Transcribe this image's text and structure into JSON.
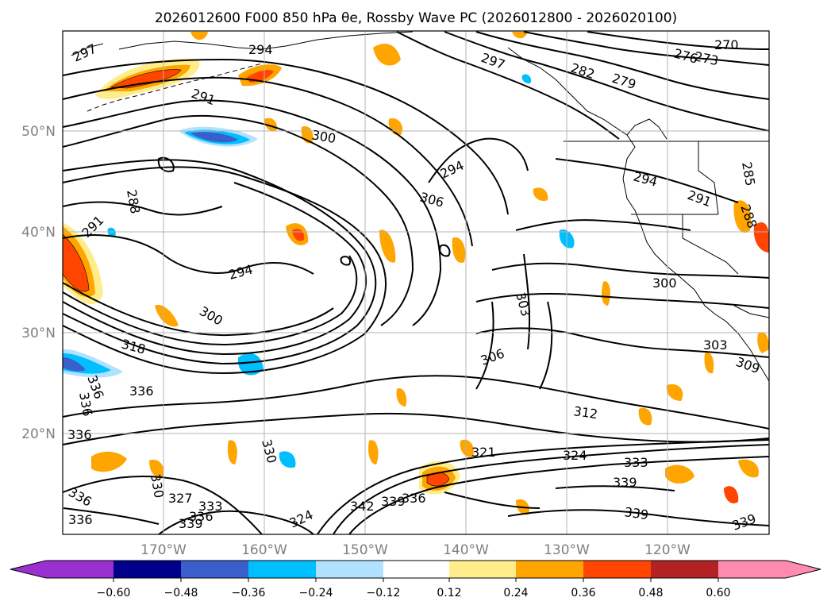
{
  "title": "2026012600 F000 850 hPa θe, Rossby Wave PC (2026012800 - 2026020100)",
  "map": {
    "lat_labels": [
      "50°N",
      "40°N",
      "30°N",
      "20°N"
    ],
    "lon_labels": [
      "170°W",
      "160°W",
      "150°W",
      "140°W",
      "130°W",
      "120°W"
    ],
    "contour_labels": [
      "297",
      "294",
      "291",
      "297",
      "282",
      "279",
      "276",
      "273",
      "270",
      "300",
      "294",
      "306",
      "288",
      "291",
      "285",
      "294",
      "291",
      "288",
      "294",
      "300",
      "303",
      "306",
      "318",
      "336",
      "336",
      "336",
      "327",
      "333",
      "336",
      "339",
      "330",
      "342",
      "339",
      "336",
      "324",
      "321",
      "312",
      "309",
      "324",
      "333",
      "339",
      "339",
      "336",
      "336",
      "330",
      "336",
      "339",
      "300",
      "303"
    ]
  },
  "colorbar": {
    "ticks": [
      "−0.60",
      "−0.48",
      "−0.36",
      "−0.24",
      "−0.12",
      "0.12",
      "0.24",
      "0.36",
      "0.48",
      "0.60"
    ],
    "colors": [
      "#9b30d0",
      "#00008b",
      "#3a5fcd",
      "#00bfff",
      "#b0e2ff",
      "#ffffff",
      "#ffec8b",
      "#ffa500",
      "#ff4500",
      "#b22222",
      "#ff8cb0",
      "#ff8cb0"
    ]
  }
}
